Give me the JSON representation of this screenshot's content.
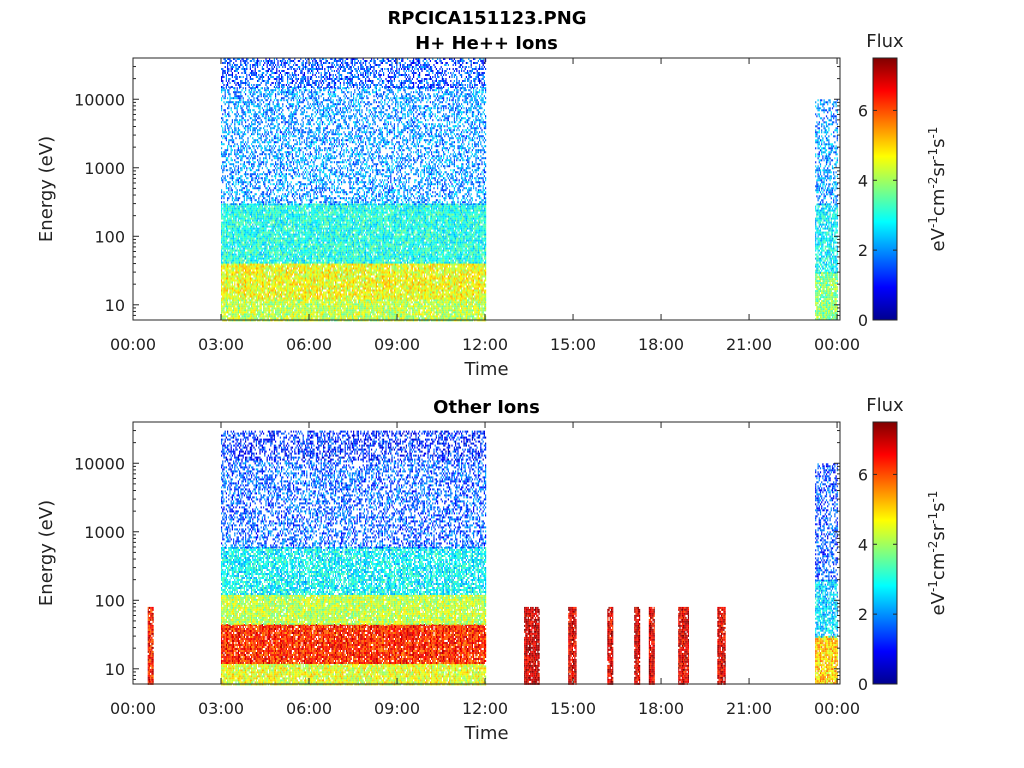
{
  "figure_title": "RPCICA151123.PNG",
  "colorbar": {
    "label": "Flux",
    "unit_base": "eV",
    "unit_parts": [
      {
        "t": "eV",
        "sup": "-1"
      },
      {
        "t": "cm",
        "sup": "-2"
      },
      {
        "t": "sr",
        "sup": "-1"
      },
      {
        "t": "s",
        "sup": "-1"
      }
    ],
    "range": [
      0,
      7.5
    ],
    "ticks": [
      "0",
      "2",
      "4",
      "6"
    ],
    "tick_values": [
      0,
      2,
      4,
      6
    ],
    "colormap": "jet"
  },
  "chart_data": [
    {
      "type": "heatmap",
      "title": "H+ He++ Ions",
      "xlabel": "Time",
      "ylabel": "Energy (eV)",
      "y_scale": "log",
      "ylim": [
        6,
        40000
      ],
      "xlim_hours": [
        0,
        24.1
      ],
      "x_ticks": [
        "00:00",
        "03:00",
        "06:00",
        "09:00",
        "12:00",
        "15:00",
        "18:00",
        "21:00",
        "00:00"
      ],
      "x_tick_hours": [
        0,
        3,
        6,
        9,
        12,
        15,
        18,
        21,
        24
      ],
      "y_ticks": [
        "10",
        "100",
        "1000",
        "10000"
      ],
      "y_tick_values": [
        10,
        100,
        1000,
        10000
      ],
      "data_blocks": [
        {
          "start": "03:00",
          "end": "12:00",
          "flux_by_energy": [
            {
              "energy_range": [
                6,
                12
              ],
              "flux": 4.2
            },
            {
              "energy_range": [
                12,
                40
              ],
              "flux": 4.6
            },
            {
              "energy_range": [
                40,
                300
              ],
              "flux": 3.0
            },
            {
              "energy_range": [
                300,
                15000
              ],
              "flux": 2.0
            },
            {
              "energy_range": [
                15000,
                40000
              ],
              "flux": 1.5
            }
          ]
        },
        {
          "start": "23:15",
          "end": "24:00",
          "flux_by_energy": [
            {
              "energy_range": [
                6,
                30
              ],
              "flux": 3.8
            },
            {
              "energy_range": [
                30,
                300
              ],
              "flux": 2.8
            },
            {
              "energy_range": [
                300,
                10000
              ],
              "flux": 2.0
            }
          ]
        }
      ]
    },
    {
      "type": "heatmap",
      "title": "Other Ions",
      "xlabel": "Time",
      "ylabel": "Energy (eV)",
      "y_scale": "log",
      "ylim": [
        6,
        40000
      ],
      "xlim_hours": [
        0,
        24.1
      ],
      "x_ticks": [
        "00:00",
        "03:00",
        "06:00",
        "09:00",
        "12:00",
        "15:00",
        "18:00",
        "21:00",
        "00:00"
      ],
      "x_tick_hours": [
        0,
        3,
        6,
        9,
        12,
        15,
        18,
        21,
        24
      ],
      "y_ticks": [
        "10",
        "100",
        "1000",
        "10000"
      ],
      "y_tick_values": [
        10,
        100,
        1000,
        10000
      ],
      "data_blocks": [
        {
          "start": "00:30",
          "end": "00:40",
          "flux_by_energy": [
            {
              "energy_range": [
                6,
                80
              ],
              "flux": 6.5
            }
          ]
        },
        {
          "start": "03:00",
          "end": "12:00",
          "flux_by_energy": [
            {
              "energy_range": [
                6,
                12
              ],
              "flux": 4.5
            },
            {
              "energy_range": [
                12,
                45
              ],
              "flux": 6.3
            },
            {
              "energy_range": [
                45,
                120
              ],
              "flux": 4.2
            },
            {
              "energy_range": [
                120,
                600
              ],
              "flux": 2.8
            },
            {
              "energy_range": [
                600,
                11000
              ],
              "flux": 1.6
            },
            {
              "energy_range": [
                11000,
                30000
              ],
              "flux": 1.2
            }
          ]
        },
        {
          "start": "13:20",
          "end": "13:50",
          "flux_by_energy": [
            {
              "energy_range": [
                6,
                80
              ],
              "flux": 7.0
            }
          ]
        },
        {
          "start": "14:50",
          "end": "15:05",
          "flux_by_energy": [
            {
              "energy_range": [
                6,
                80
              ],
              "flux": 6.8
            }
          ]
        },
        {
          "start": "16:10",
          "end": "16:20",
          "flux_by_energy": [
            {
              "energy_range": [
                6,
                80
              ],
              "flux": 6.8
            }
          ]
        },
        {
          "start": "17:05",
          "end": "17:15",
          "flux_by_energy": [
            {
              "energy_range": [
                6,
                80
              ],
              "flux": 6.8
            }
          ]
        },
        {
          "start": "17:35",
          "end": "17:45",
          "flux_by_energy": [
            {
              "energy_range": [
                6,
                80
              ],
              "flux": 6.8
            }
          ]
        },
        {
          "start": "18:35",
          "end": "18:55",
          "flux_by_energy": [
            {
              "energy_range": [
                6,
                80
              ],
              "flux": 6.8
            }
          ]
        },
        {
          "start": "19:55",
          "end": "20:10",
          "flux_by_energy": [
            {
              "energy_range": [
                6,
                80
              ],
              "flux": 6.8
            }
          ]
        },
        {
          "start": "23:15",
          "end": "24:00",
          "flux_by_energy": [
            {
              "energy_range": [
                6,
                30
              ],
              "flux": 5.0
            },
            {
              "energy_range": [
                30,
                200
              ],
              "flux": 2.5
            },
            {
              "energy_range": [
                200,
                10000
              ],
              "flux": 1.5
            }
          ]
        }
      ]
    }
  ]
}
